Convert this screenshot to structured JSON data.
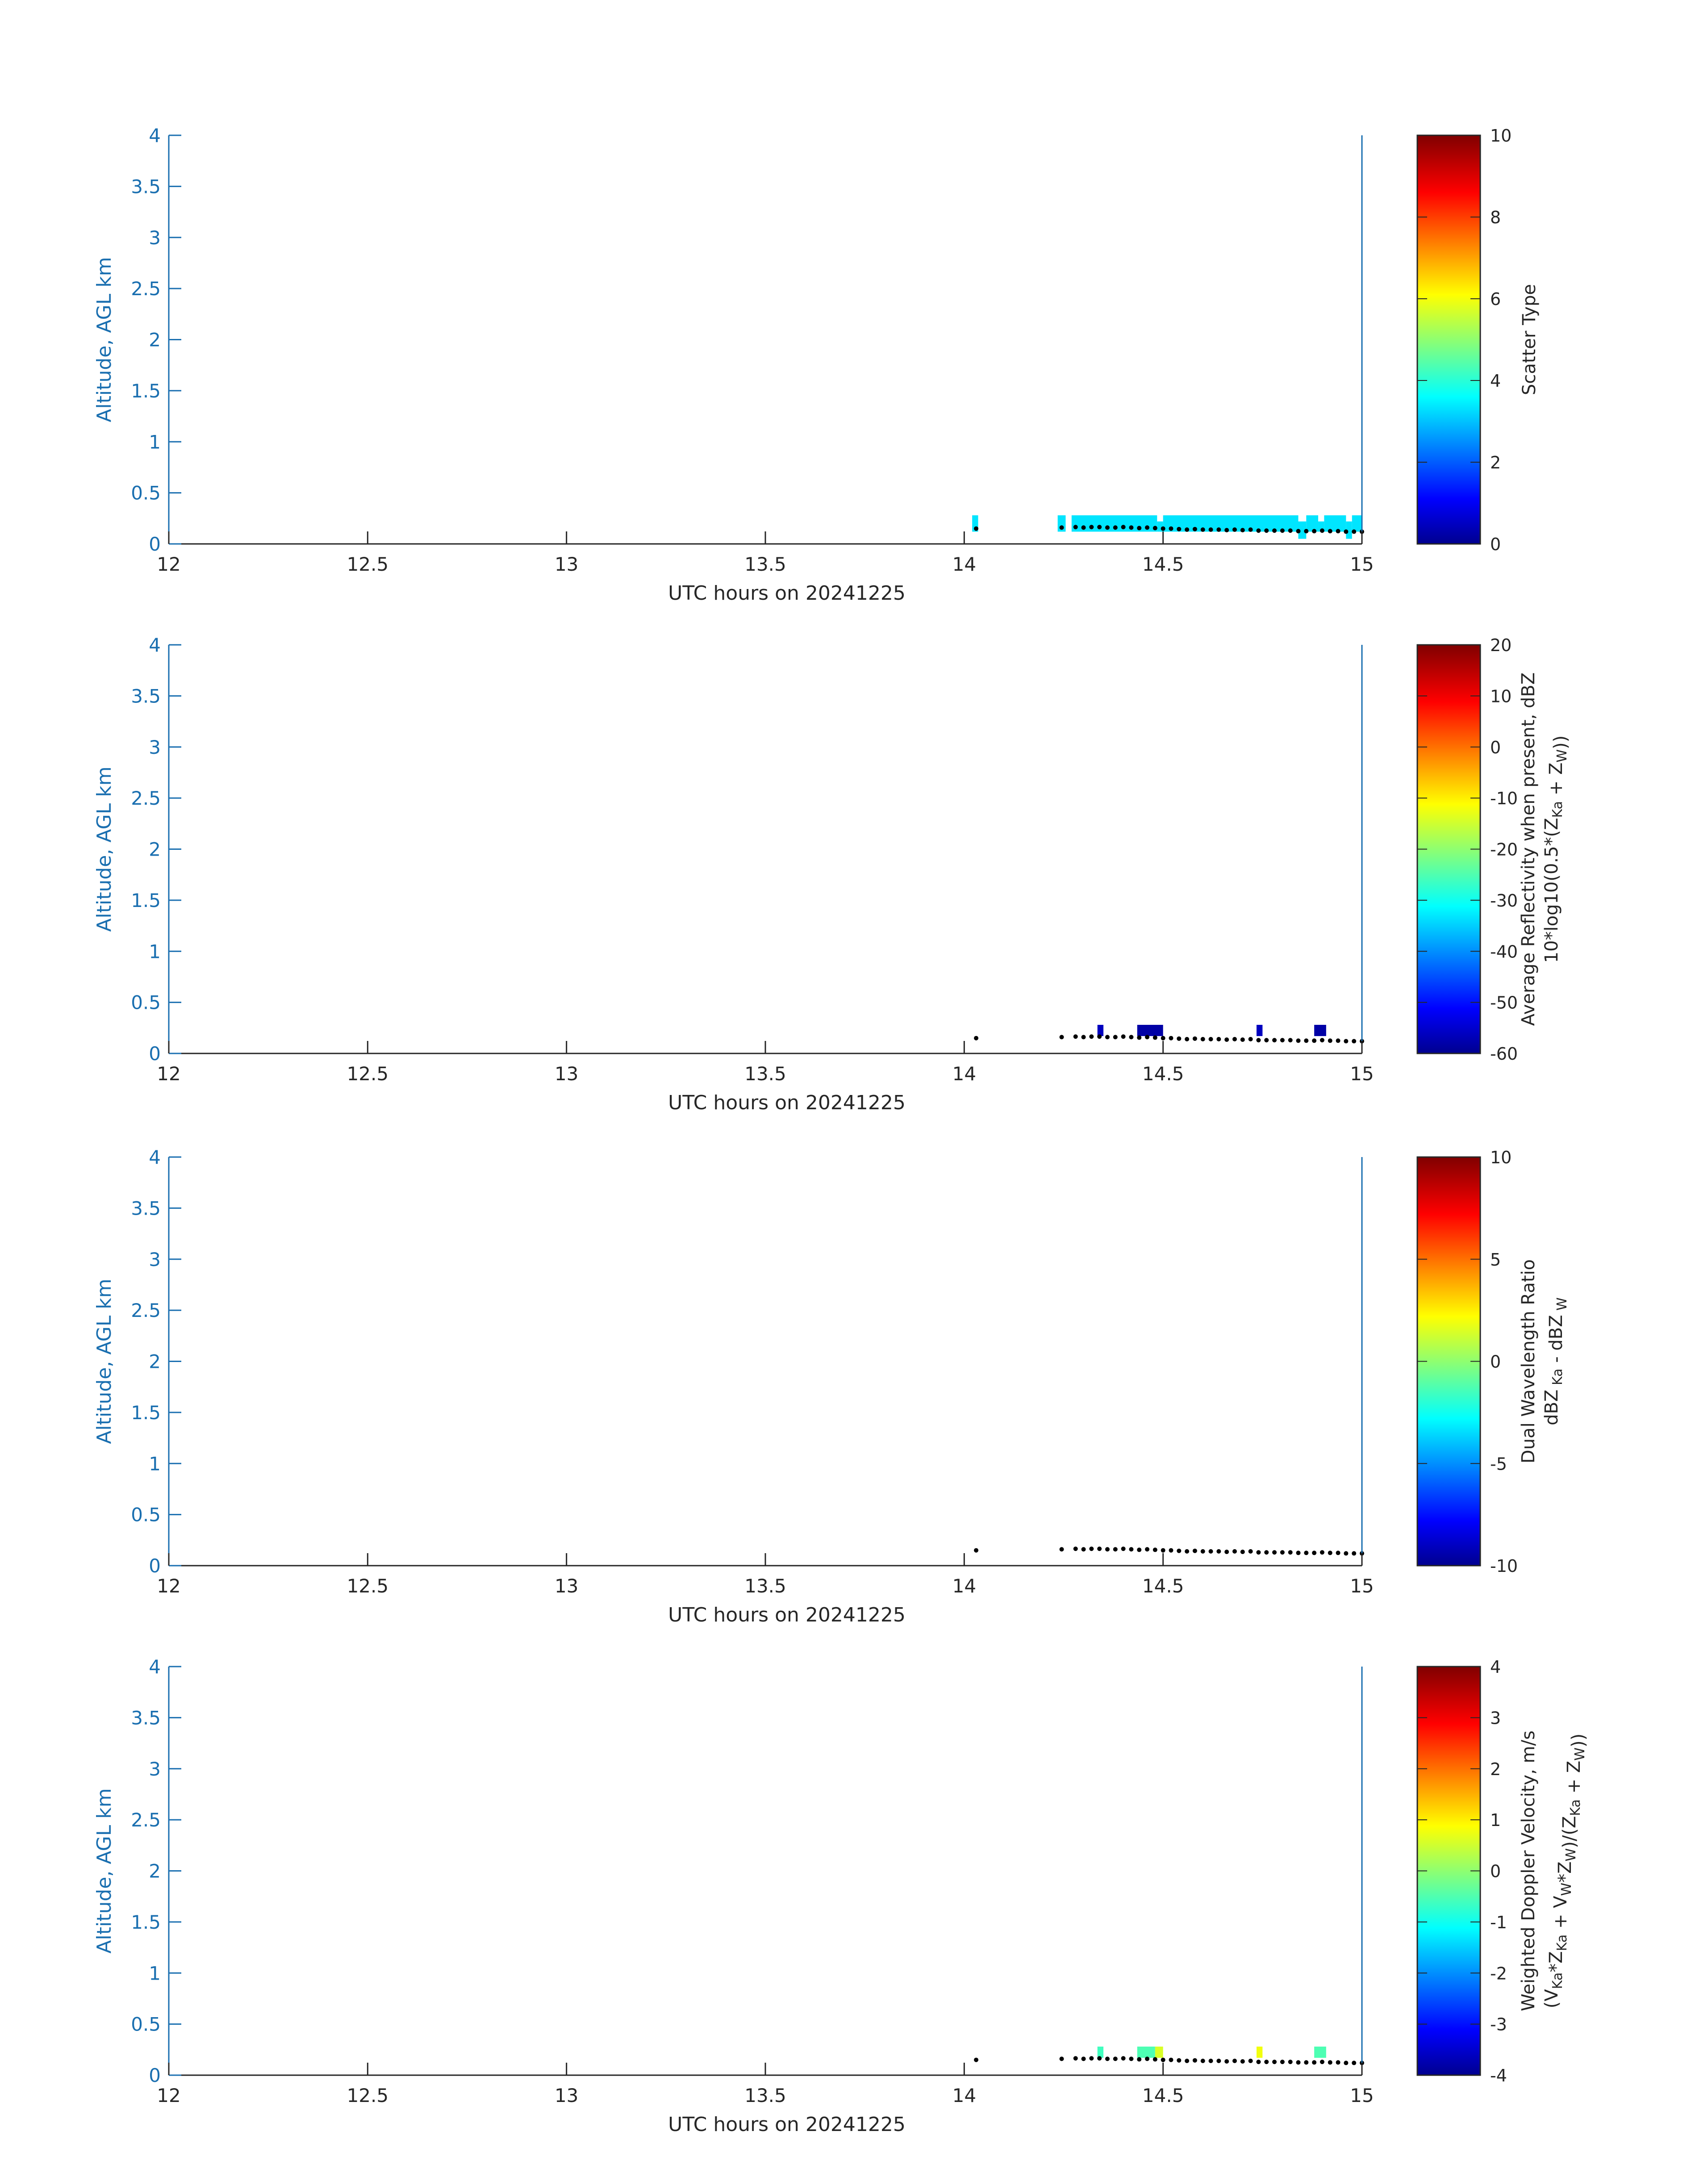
{
  "colors": {
    "axis_y": "#1a6fb0",
    "text": "#262626",
    "marker": "#000000"
  },
  "chart_data": [
    {
      "type": "heatmap",
      "name": "scatter-type",
      "xlabel": "UTC hours on 20241225",
      "ylabel": "Altitude, AGL km",
      "xlim": [
        12,
        15
      ],
      "ylim": [
        0,
        4
      ],
      "xticks": [
        12,
        12.5,
        13,
        13.5,
        14,
        14.5,
        15
      ],
      "yticks": [
        0,
        0.5,
        1,
        1.5,
        2,
        2.5,
        3,
        3.5,
        4
      ],
      "grid": false,
      "colorbar": {
        "label_lines": [
          [
            {
              "t": "Scatter Type"
            }
          ]
        ],
        "range": [
          0,
          10
        ],
        "ticks": [
          0,
          2,
          4,
          6,
          8,
          10
        ]
      },
      "cells": [
        {
          "x0": 14.02,
          "x1": 14.035,
          "y0": 0.12,
          "y1": 0.28,
          "v": 3.5
        },
        {
          "x0": 14.235,
          "x1": 14.255,
          "y0": 0.12,
          "y1": 0.28,
          "v": 3.5
        },
        {
          "x0": 14.27,
          "x1": 14.485,
          "y0": 0.12,
          "y1": 0.28,
          "v": 3.5
        },
        {
          "x0": 14.485,
          "x1": 14.5,
          "y0": 0.12,
          "y1": 0.22,
          "v": 3.5
        },
        {
          "x0": 14.5,
          "x1": 14.84,
          "y0": 0.12,
          "y1": 0.28,
          "v": 3.5
        },
        {
          "x0": 14.84,
          "x1": 14.86,
          "y0": 0.05,
          "y1": 0.22,
          "v": 3.5
        },
        {
          "x0": 14.86,
          "x1": 14.89,
          "y0": 0.12,
          "y1": 0.28,
          "v": 3.5
        },
        {
          "x0": 14.89,
          "x1": 14.905,
          "y0": 0.12,
          "y1": 0.22,
          "v": 3.5
        },
        {
          "x0": 14.905,
          "x1": 14.96,
          "y0": 0.12,
          "y1": 0.28,
          "v": 3.5
        },
        {
          "x0": 14.96,
          "x1": 14.975,
          "y0": 0.05,
          "y1": 0.22,
          "v": 3.5
        },
        {
          "x0": 14.975,
          "x1": 15.0,
          "y0": 0.12,
          "y1": 0.28,
          "v": 3.5
        }
      ]
    },
    {
      "type": "heatmap",
      "name": "reflectivity",
      "xlabel": "UTC hours on 20241225",
      "ylabel": "Altitude, AGL km",
      "xlim": [
        12,
        15
      ],
      "ylim": [
        0,
        4
      ],
      "xticks": [
        12,
        12.5,
        13,
        13.5,
        14,
        14.5,
        15
      ],
      "yticks": [
        0,
        0.5,
        1,
        1.5,
        2,
        2.5,
        3,
        3.5,
        4
      ],
      "grid": false,
      "colorbar": {
        "label_lines": [
          [
            {
              "t": "Average Reflectivity when present, dBZ"
            }
          ],
          [
            {
              "t": "10*log10(0.5*(Z"
            },
            {
              "t": "Ka",
              "sub": true
            },
            {
              "t": " + Z"
            },
            {
              "t": "W",
              "sub": true
            },
            {
              "t": "))"
            }
          ]
        ],
        "range": [
          -60,
          20
        ],
        "ticks": [
          -60,
          -50,
          -40,
          -30,
          -20,
          -10,
          0,
          10,
          20
        ]
      },
      "cells": [
        {
          "x0": 14.335,
          "x1": 14.35,
          "y0": 0.17,
          "y1": 0.28,
          "v": -55
        },
        {
          "x0": 14.435,
          "x1": 14.5,
          "y0": 0.17,
          "y1": 0.28,
          "v": -57
        },
        {
          "x0": 14.735,
          "x1": 14.75,
          "y0": 0.17,
          "y1": 0.28,
          "v": -55
        },
        {
          "x0": 14.88,
          "x1": 14.91,
          "y0": 0.17,
          "y1": 0.28,
          "v": -57
        }
      ]
    },
    {
      "type": "heatmap",
      "name": "dual-wavelength-ratio",
      "xlabel": "UTC hours on 20241225",
      "ylabel": "Altitude, AGL km",
      "xlim": [
        12,
        15
      ],
      "ylim": [
        0,
        4
      ],
      "xticks": [
        12,
        12.5,
        13,
        13.5,
        14,
        14.5,
        15
      ],
      "yticks": [
        0,
        0.5,
        1,
        1.5,
        2,
        2.5,
        3,
        3.5,
        4
      ],
      "grid": false,
      "colorbar": {
        "label_lines": [
          [
            {
              "t": "Dual Wavelength Ratio"
            }
          ],
          [
            {
              "t": "dBZ"
            },
            {
              "t": " Ka",
              "sub": true
            },
            {
              "t": " - dBZ"
            },
            {
              "t": " W",
              "sub": true
            }
          ]
        ],
        "range": [
          -10,
          10
        ],
        "ticks": [
          -10,
          -5,
          0,
          5,
          10
        ]
      },
      "cells": []
    },
    {
      "type": "heatmap",
      "name": "doppler-velocity",
      "xlabel": "UTC hours on 20241225",
      "ylabel": "Altitude, AGL km",
      "xlim": [
        12,
        15
      ],
      "ylim": [
        0,
        4
      ],
      "xticks": [
        12,
        12.5,
        13,
        13.5,
        14,
        14.5,
        15
      ],
      "yticks": [
        0,
        0.5,
        1,
        1.5,
        2,
        2.5,
        3,
        3.5,
        4
      ],
      "grid": false,
      "colorbar": {
        "label_lines": [
          [
            {
              "t": "Weighted Doppler Velocity, m/s"
            }
          ],
          [
            {
              "t": "(V"
            },
            {
              "t": "Ka",
              "sub": true
            },
            {
              "t": "*Z"
            },
            {
              "t": "Ka",
              "sub": true
            },
            {
              "t": " + V"
            },
            {
              "t": "W",
              "sub": true
            },
            {
              "t": "*Z"
            },
            {
              "t": "W",
              "sub": true
            },
            {
              "t": ")/(Z"
            },
            {
              "t": "Ka",
              "sub": true
            },
            {
              "t": " + Z"
            },
            {
              "t": "W",
              "sub": true
            },
            {
              "t": "))"
            }
          ]
        ],
        "range": [
          -4,
          4
        ],
        "ticks": [
          -4,
          -3,
          -2,
          -1,
          0,
          1,
          2,
          3,
          4
        ]
      },
      "cells": [
        {
          "x0": 14.335,
          "x1": 14.35,
          "y0": 0.17,
          "y1": 0.28,
          "v": -0.5
        },
        {
          "x0": 14.435,
          "x1": 14.48,
          "y0": 0.17,
          "y1": 0.28,
          "v": -0.4
        },
        {
          "x0": 14.48,
          "x1": 14.5,
          "y0": 0.17,
          "y1": 0.28,
          "v": 0.7
        },
        {
          "x0": 14.735,
          "x1": 14.75,
          "y0": 0.17,
          "y1": 0.28,
          "v": 0.9
        },
        {
          "x0": 14.88,
          "x1": 14.91,
          "y0": 0.17,
          "y1": 0.28,
          "v": -0.4
        }
      ]
    }
  ],
  "surface_points": [
    {
      "x": 14.03,
      "y": 0.15
    },
    {
      "x": 14.245,
      "y": 0.16
    },
    {
      "x": 14.28,
      "y": 0.165
    },
    {
      "x": 14.3,
      "y": 0.16
    },
    {
      "x": 14.32,
      "y": 0.165
    },
    {
      "x": 14.34,
      "y": 0.165
    },
    {
      "x": 14.36,
      "y": 0.16
    },
    {
      "x": 14.38,
      "y": 0.16
    },
    {
      "x": 14.4,
      "y": 0.165
    },
    {
      "x": 14.42,
      "y": 0.16
    },
    {
      "x": 14.44,
      "y": 0.155
    },
    {
      "x": 14.46,
      "y": 0.16
    },
    {
      "x": 14.48,
      "y": 0.155
    },
    {
      "x": 14.5,
      "y": 0.15
    },
    {
      "x": 14.52,
      "y": 0.15
    },
    {
      "x": 14.54,
      "y": 0.145
    },
    {
      "x": 14.56,
      "y": 0.14
    },
    {
      "x": 14.58,
      "y": 0.145
    },
    {
      "x": 14.6,
      "y": 0.14
    },
    {
      "x": 14.62,
      "y": 0.14
    },
    {
      "x": 14.64,
      "y": 0.14
    },
    {
      "x": 14.66,
      "y": 0.135
    },
    {
      "x": 14.68,
      "y": 0.14
    },
    {
      "x": 14.7,
      "y": 0.135
    },
    {
      "x": 14.72,
      "y": 0.14
    },
    {
      "x": 14.74,
      "y": 0.13
    },
    {
      "x": 14.76,
      "y": 0.13
    },
    {
      "x": 14.78,
      "y": 0.13
    },
    {
      "x": 14.8,
      "y": 0.13
    },
    {
      "x": 14.82,
      "y": 0.13
    },
    {
      "x": 14.84,
      "y": 0.125
    },
    {
      "x": 14.86,
      "y": 0.125
    },
    {
      "x": 14.88,
      "y": 0.125
    },
    {
      "x": 14.9,
      "y": 0.13
    },
    {
      "x": 14.92,
      "y": 0.125
    },
    {
      "x": 14.94,
      "y": 0.125
    },
    {
      "x": 14.96,
      "y": 0.12
    },
    {
      "x": 14.98,
      "y": 0.12
    },
    {
      "x": 15.0,
      "y": 0.12
    }
  ]
}
